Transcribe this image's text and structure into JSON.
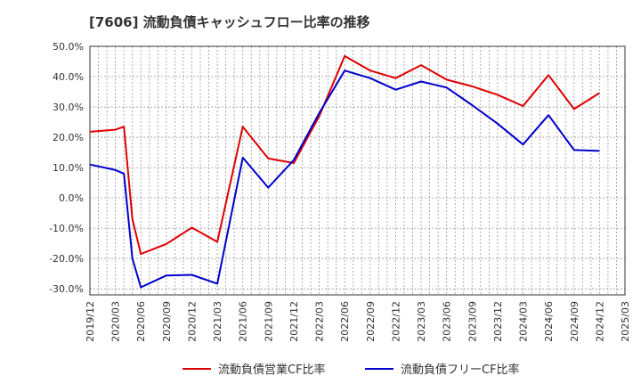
{
  "chart_data": {
    "type": "line",
    "title": "[7606]  流動負債キャッシュフロー比率の推移",
    "xlabel": "",
    "ylabel": "",
    "ylim": [
      -32,
      50
    ],
    "y_ticks": [
      "50.0%",
      "40.0%",
      "30.0%",
      "20.0%",
      "10.0%",
      "0.0%",
      "-10.0%",
      "-20.0%",
      "-30.0%"
    ],
    "y_tick_values": [
      50,
      40,
      30,
      20,
      10,
      0,
      -10,
      -20,
      -30
    ],
    "x_ticks": [
      "2019/12",
      "2020/03",
      "2020/06",
      "2020/09",
      "2020/12",
      "2021/03",
      "2021/06",
      "2021/09",
      "2021/12",
      "2022/03",
      "2022/06",
      "2022/09",
      "2022/12",
      "2023/03",
      "2023/06",
      "2023/09",
      "2023/12",
      "2024/03",
      "2024/06",
      "2024/09",
      "2024/12",
      "2025/03"
    ],
    "grid": true,
    "legend_position": "bottom",
    "series": [
      {
        "name": "流動負債営業CF比率",
        "color": "#dd0000",
        "points": [
          [
            "2019/12",
            21.8
          ],
          [
            "2020/03",
            22.5
          ],
          [
            "2020/04",
            23.5
          ],
          [
            "2020/05",
            -7.0
          ],
          [
            "2020/06",
            -18.5
          ],
          [
            "2020/09",
            -15.2
          ],
          [
            "2020/12",
            -9.8
          ],
          [
            "2021/03",
            -14.5
          ],
          [
            "2021/06",
            23.5
          ],
          [
            "2021/09",
            13.0
          ],
          [
            "2021/12",
            11.5
          ],
          [
            "2022/03",
            27.0
          ],
          [
            "2022/06",
            46.8
          ],
          [
            "2022/09",
            42.0
          ],
          [
            "2022/12",
            39.5
          ],
          [
            "2023/03",
            43.8
          ],
          [
            "2023/06",
            39.0
          ],
          [
            "2023/09",
            36.8
          ],
          [
            "2023/12",
            34.0
          ],
          [
            "2024/03",
            30.3
          ],
          [
            "2024/06",
            40.5
          ],
          [
            "2024/09",
            29.3
          ],
          [
            "2024/12",
            34.6
          ]
        ]
      },
      {
        "name": "流動負債フリーCF比率",
        "color": "#0000cc",
        "points": [
          [
            "2019/12",
            11.0
          ],
          [
            "2020/03",
            9.2
          ],
          [
            "2020/04",
            8.0
          ],
          [
            "2020/05",
            -20.0
          ],
          [
            "2020/06",
            -29.5
          ],
          [
            "2020/09",
            -25.6
          ],
          [
            "2020/12",
            -25.4
          ],
          [
            "2021/03",
            -28.3
          ],
          [
            "2021/06",
            13.3
          ],
          [
            "2021/09",
            3.4
          ],
          [
            "2021/12",
            12.5
          ],
          [
            "2022/03",
            28.0
          ],
          [
            "2022/06",
            42.0
          ],
          [
            "2022/09",
            39.5
          ],
          [
            "2022/12",
            35.7
          ],
          [
            "2023/03",
            38.4
          ],
          [
            "2023/06",
            36.4
          ],
          [
            "2023/09",
            30.6
          ],
          [
            "2023/12",
            24.5
          ],
          [
            "2024/03",
            17.6
          ],
          [
            "2024/06",
            27.3
          ],
          [
            "2024/09",
            15.8
          ],
          [
            "2024/12",
            15.5
          ]
        ]
      }
    ]
  }
}
